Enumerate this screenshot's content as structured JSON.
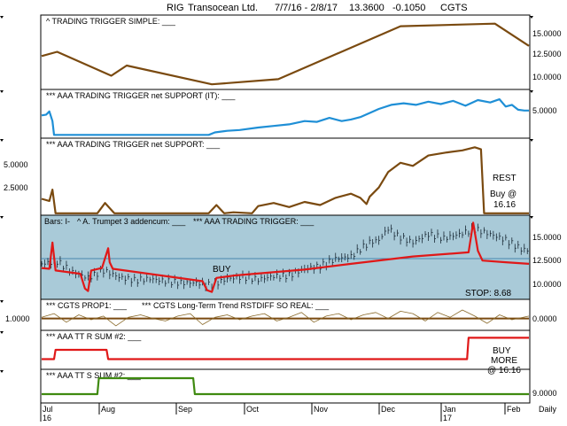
{
  "header": {
    "symbol": "RIG",
    "company": "Transocean Ltd.",
    "range": "7/7/16 - 2/8/17",
    "price": "13.3600",
    "change": "-0.1050",
    "study": "CGTS"
  },
  "colors": {
    "brown": "#7a4a10",
    "blue": "#1f8fd6",
    "red": "#e01818",
    "green": "#3f8a10",
    "panel_bg": "#a9cad8",
    "label_underline": "#d03030"
  },
  "x_axis": {
    "labels": [
      "Jul",
      "Aug",
      "Sep",
      "Oct",
      "Nov",
      "Dec",
      "Jan",
      "Feb"
    ],
    "year_labels": [
      "16",
      "17"
    ],
    "period": "Daily"
  },
  "panels": [
    {
      "id": "p1",
      "label": "^ TRADING TRIGGER SIMPLE: ___",
      "y_ticks": [
        "15.0000",
        "12.5000",
        "10.0000"
      ],
      "y_tick_values": [
        15,
        12.5,
        10
      ]
    },
    {
      "id": "p2",
      "label": "***  AAA TRADING TRIGGER net SUPPORT (IT): ___",
      "y_ticks": [
        "5.0000"
      ],
      "y_tick_values": [
        5
      ]
    },
    {
      "id": "p3",
      "label": "***  AAA TRADING TRIGGER net SUPPORT: ___",
      "y_ticks": [
        "5.0000",
        "2.5000"
      ],
      "y_tick_values": [
        5,
        2.5
      ],
      "annotations": [
        "REST",
        "Buy @",
        "16.16"
      ]
    },
    {
      "id": "p4",
      "label_bars": "Bars: I-",
      "label_trumpet": "^ A. Trumpet 3 addencum: ___",
      "label_trigger": "***  AAA TRADING TRIGGER: ___",
      "y_ticks": [
        "15.0000",
        "12.5000",
        "10.0000"
      ],
      "y_tick_values": [
        15,
        12.5,
        10
      ],
      "annotations": [
        "BUY",
        "STOP: 8.68"
      ]
    },
    {
      "id": "p5",
      "label_prop": "***  CGTS PROP1: ___",
      "label_rstd": "***  CGTS Long-Term Trend RSTDIFF SO REAL: ___",
      "y_ticks_left": [
        "1.0000"
      ],
      "y_ticks_right": [
        "0.0000"
      ]
    },
    {
      "id": "p6",
      "label": "***  AAA TT R SUM #2: ___",
      "annotations": [
        "BUY",
        "MORE",
        "@ 16.16"
      ]
    },
    {
      "id": "p7",
      "label": "***  AAA TT S SUM #2: ___",
      "y_ticks": [
        "9.0000"
      ],
      "y_tick_values": [
        9
      ]
    }
  ],
  "chart_data": [
    {
      "type": "line",
      "panel": "p1",
      "title": "^ TRADING TRIGGER SIMPLE",
      "ylim": [
        8.5,
        17
      ],
      "x": [
        0,
        10,
        45,
        55,
        110,
        153,
        232,
        293,
        315
      ],
      "series": [
        {
          "values": [
            12.3,
            12.8,
            10,
            11.2,
            9,
            9.6,
            15.8,
            16.1,
            13.5
          ]
        }
      ]
    },
    {
      "type": "line",
      "panel": "p2",
      "title": "AAA TRADING TRIGGER net SUPPORT (IT)",
      "ylim": [
        1.6,
        7.4
      ],
      "x": [
        0,
        3,
        5,
        7,
        8,
        108,
        112,
        120,
        128,
        140,
        150,
        160,
        170,
        178,
        186,
        194,
        200,
        206,
        212,
        218,
        226,
        234,
        242,
        250,
        258,
        266,
        274,
        282,
        290,
        296,
        300,
        304,
        308,
        312,
        315
      ],
      "series": [
        {
          "values": [
            4.3,
            4.4,
            4.8,
            3.6,
            1.9,
            1.9,
            2.2,
            2.4,
            2.5,
            2.8,
            3.0,
            3.2,
            3.6,
            3.5,
            4.0,
            3.6,
            3.8,
            4.1,
            4.6,
            5.1,
            5.6,
            5.8,
            5.6,
            6.0,
            5.7,
            6.1,
            5.5,
            6.2,
            5.9,
            6.3,
            5.4,
            5.6,
            5.0,
            4.9,
            4.9
          ]
        }
      ]
    },
    {
      "type": "line",
      "panel": "p3",
      "title": "AAA TRADING TRIGGER net SUPPORT",
      "ylim": [
        0.9,
        8.2
      ],
      "x": [
        0,
        5,
        7,
        9,
        36,
        41,
        47,
        108,
        113,
        118,
        124,
        136,
        140,
        150,
        160,
        170,
        180,
        190,
        200,
        206,
        210,
        212,
        218,
        224,
        232,
        240,
        250,
        262,
        272,
        280,
        284,
        286,
        315
      ],
      "series": [
        {
          "values": [
            2.4,
            2.2,
            3.3,
            1.0,
            1.0,
            2.0,
            1.0,
            1.0,
            1.8,
            1.0,
            1.1,
            1.0,
            1.7,
            2.0,
            1.6,
            2.1,
            1.8,
            2.5,
            2.9,
            2.5,
            1.9,
            2.6,
            3.5,
            5.0,
            5.9,
            5.6,
            6.6,
            6.9,
            7.1,
            7.4,
            7.2,
            1.0,
            1.0
          ]
        }
      ]
    },
    {
      "type": "line",
      "panel": "p4",
      "title": "AAA TRADING TRIGGER",
      "ylim": [
        7.8,
        17.8
      ],
      "x": [
        0,
        5,
        7,
        9,
        25,
        28,
        30,
        32,
        39,
        43,
        44,
        46,
        104,
        107,
        110,
        113,
        125,
        170,
        200,
        240,
        276,
        279,
        282,
        285,
        300,
        315
      ],
      "series": [
        {
          "values": [
            11.5,
            11.4,
            14.6,
            11.2,
            10.8,
            9.0,
            8.7,
            11.2,
            11.5,
            13.9,
            12.2,
            11.4,
            9.9,
            8.8,
            8.6,
            10.3,
            10.6,
            11.3,
            12.0,
            12.9,
            13.4,
            17.0,
            13.6,
            12.4,
            12.2,
            12.0
          ]
        }
      ],
      "bars_close_x": [
        0,
        10,
        20,
        30,
        40,
        50,
        60,
        70,
        80,
        90,
        100,
        110,
        120,
        130,
        140,
        150,
        160,
        170,
        180,
        190,
        200,
        206,
        212,
        218,
        224,
        230,
        240,
        250,
        260,
        270,
        280,
        290,
        300,
        310,
        315
      ],
      "bars_close": [
        12.0,
        12.3,
        11.0,
        10.3,
        11.2,
        10.4,
        10.0,
        10.2,
        9.9,
        9.7,
        9.7,
        9.4,
        10.2,
        10.4,
        10.1,
        10.5,
        10.6,
        11.4,
        11.7,
        12.6,
        12.9,
        13.8,
        14.6,
        14.9,
        16.3,
        15.4,
        14.6,
        15.6,
        15.1,
        15.6,
        16.2,
        15.6,
        14.9,
        13.8,
        13.6
      ],
      "bars_range": 1.1
    },
    {
      "type": "line",
      "panel": "p5",
      "title": "CGTS PROP1 / CGTS Long-Term Trend RSTDIFF SO REAL",
      "ylim": [
        -0.9,
        1.5
      ],
      "x": [
        0,
        8,
        16,
        24,
        32,
        40,
        48,
        56,
        64,
        72,
        80,
        88,
        96,
        104,
        112,
        120,
        128,
        136,
        144,
        152,
        160,
        168,
        176,
        184,
        192,
        200,
        208,
        216,
        224,
        232,
        240,
        248,
        256,
        264,
        272,
        280,
        288,
        296,
        304,
        315
      ],
      "series": [
        {
          "name": "PROP1",
          "values": [
            0.0,
            0.0,
            0.0,
            0.0,
            0.0,
            0.0,
            0.0,
            0.0,
            0.0,
            0.0,
            0.0,
            0.0,
            0.0,
            0.0,
            0.0,
            0.0,
            0.0,
            0.0,
            0.0,
            0.0,
            0.0,
            0.0,
            0.0,
            0.0,
            0.0,
            0.0,
            0.0,
            0.0,
            0.0,
            0.0,
            0.0,
            0.0,
            0.0,
            0.0,
            0.0,
            0.0,
            0.0,
            0.0,
            0.0,
            0.0
          ]
        },
        {
          "name": "RSTDIFF",
          "values": [
            0.1,
            0.4,
            -0.3,
            0.3,
            -0.1,
            0.2,
            -0.6,
            0.1,
            0.3,
            0.0,
            -0.2,
            0.2,
            0.4,
            -0.5,
            0.1,
            0.3,
            -0.1,
            0.2,
            0.4,
            -0.2,
            0.1,
            0.5,
            -0.3,
            0.2,
            0.4,
            -0.1,
            0.3,
            0.5,
            0.0,
            0.6,
            0.4,
            -0.2,
            0.5,
            0.1,
            0.7,
            0.2,
            -0.4,
            0.3,
            -0.1,
            0.2
          ]
        }
      ]
    },
    {
      "type": "line",
      "panel": "p6",
      "title": "AAA TT R SUM #2",
      "ylim": [
        0,
        4
      ],
      "x": [
        0,
        8,
        9,
        42,
        43,
        275,
        276,
        315
      ],
      "series": [
        {
          "values": [
            1,
            1,
            2,
            2,
            1,
            1,
            3.3,
            3.3
          ]
        }
      ]
    },
    {
      "type": "line",
      "panel": "p7",
      "title": "AAA TT S SUM #2",
      "ylim": [
        0,
        4
      ],
      "x": [
        0,
        36,
        37,
        98,
        99,
        315
      ],
      "series": [
        {
          "values": [
            1,
            1,
            3,
            3,
            1,
            1
          ]
        }
      ]
    }
  ]
}
